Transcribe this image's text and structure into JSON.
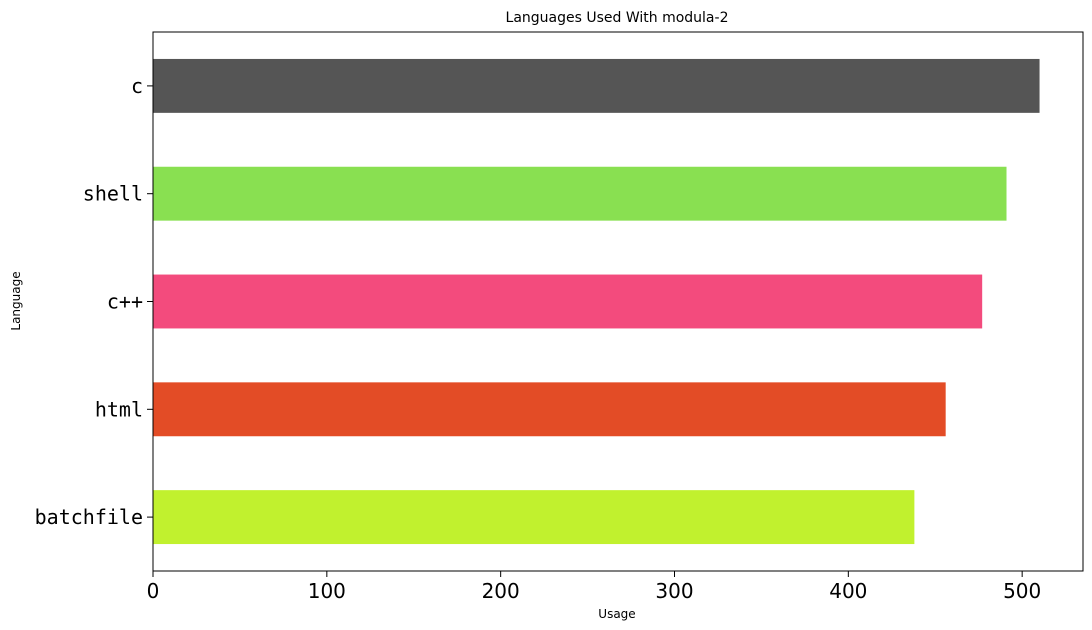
{
  "chart_data": {
    "type": "bar",
    "orientation": "horizontal",
    "title": "Languages Used With modula-2",
    "xlabel": "Usage",
    "ylabel": "Language",
    "categories": [
      "c",
      "shell",
      "c++",
      "html",
      "batchfile"
    ],
    "values": [
      510,
      491,
      477,
      456,
      438
    ],
    "colors": [
      "#555555",
      "#89e051",
      "#f34b7d",
      "#e34c26",
      "#c1f12e"
    ],
    "xlim": [
      0,
      535
    ],
    "xticks": [
      0,
      100,
      200,
      300,
      400,
      500
    ],
    "xtick_labels": [
      "0",
      "100",
      "200",
      "300",
      "400",
      "500"
    ],
    "grid": false,
    "legend": "none"
  }
}
